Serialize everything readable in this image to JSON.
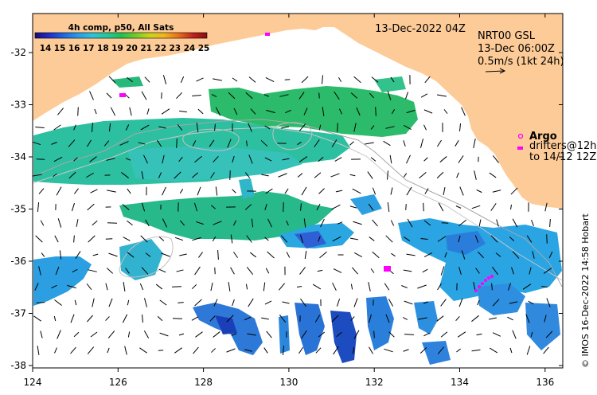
{
  "colorbar": {
    "title": "4h comp, p50, All Sats",
    "ticks": [
      "14",
      "15",
      "16",
      "17",
      "18",
      "19",
      "20",
      "21",
      "22",
      "23",
      "24",
      "25"
    ],
    "colors": [
      "#1a0a78",
      "#1f2fc8",
      "#1f66dd",
      "#2a9be8",
      "#2fc1d8",
      "#27c79a",
      "#1fbf55",
      "#6fcb2a",
      "#c8d41e",
      "#f2b51e",
      "#e8701b",
      "#c0251c",
      "#8b0d10"
    ]
  },
  "map": {
    "date_label": "13-Dec-2022 04Z",
    "x_ticks": [
      "124",
      "126",
      "128",
      "130",
      "132",
      "134",
      "136"
    ],
    "y_ticks": [
      "-32",
      "-33",
      "-34",
      "-35",
      "-36",
      "-37",
      "-38"
    ],
    "land_color": "#fdcb98",
    "credit": "© IMOS 16-Dec-2022 14:58 Hobart"
  },
  "currents": {
    "line1": "NRT00 GSL",
    "line2": "13-Dec 06:00Z",
    "line3": "0.5m/s (1kt 24h)"
  },
  "argo": {
    "label": "Argo",
    "drifters_line1": "drifters@12h",
    "drifters_line2": "to 14/12 12Z",
    "color": "#ff00ff"
  }
}
